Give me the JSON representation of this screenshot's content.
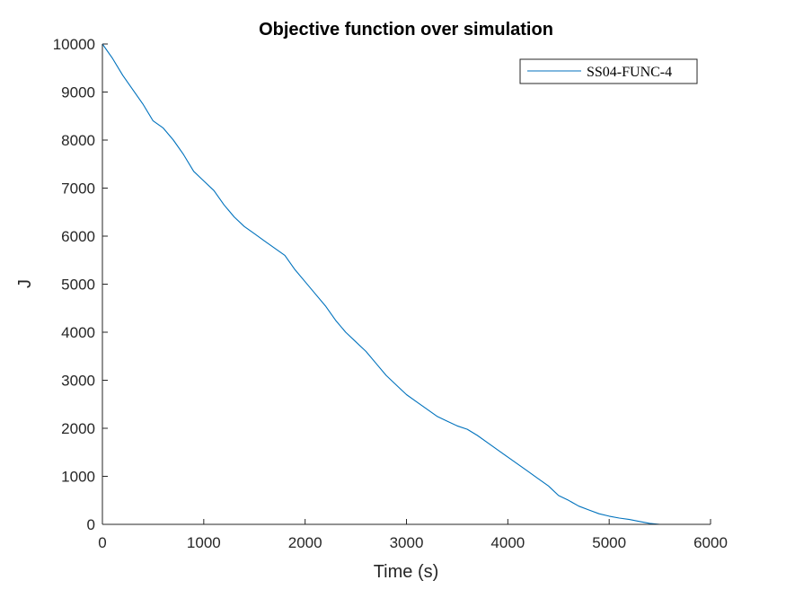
{
  "chart_data": {
    "type": "line",
    "title": "Objective function over simulation",
    "xlabel": "Time (s)",
    "ylabel": "J",
    "xlim": [
      0,
      6000
    ],
    "ylim": [
      0,
      10000
    ],
    "xticks": [
      0,
      1000,
      2000,
      3000,
      4000,
      5000,
      6000
    ],
    "yticks": [
      0,
      1000,
      2000,
      3000,
      4000,
      5000,
      6000,
      7000,
      8000,
      9000,
      10000
    ],
    "grid": false,
    "legend_position": "top-right",
    "series": [
      {
        "name": "SS04-FUNC-4",
        "color": "#0072BD",
        "x": [
          0,
          100,
          200,
          300,
          400,
          500,
          600,
          700,
          800,
          900,
          1000,
          1100,
          1200,
          1300,
          1400,
          1500,
          1600,
          1700,
          1800,
          1900,
          2000,
          2100,
          2200,
          2300,
          2400,
          2500,
          2600,
          2700,
          2800,
          2900,
          3000,
          3100,
          3200,
          3300,
          3400,
          3500,
          3600,
          3700,
          3800,
          3900,
          4000,
          4100,
          4200,
          4300,
          4400,
          4500,
          4600,
          4700,
          4800,
          4900,
          5000,
          5100,
          5200,
          5300,
          5400,
          5500
        ],
        "y": [
          10000,
          9700,
          9350,
          9050,
          8750,
          8400,
          8250,
          8000,
          7700,
          7350,
          7150,
          6950,
          6650,
          6400,
          6200,
          6050,
          5900,
          5750,
          5600,
          5300,
          5050,
          4800,
          4550,
          4250,
          4000,
          3800,
          3600,
          3350,
          3100,
          2900,
          2700,
          2550,
          2400,
          2250,
          2150,
          2050,
          1980,
          1850,
          1700,
          1550,
          1400,
          1250,
          1100,
          950,
          800,
          600,
          500,
          380,
          300,
          220,
          170,
          130,
          100,
          60,
          20,
          0
        ]
      }
    ]
  }
}
